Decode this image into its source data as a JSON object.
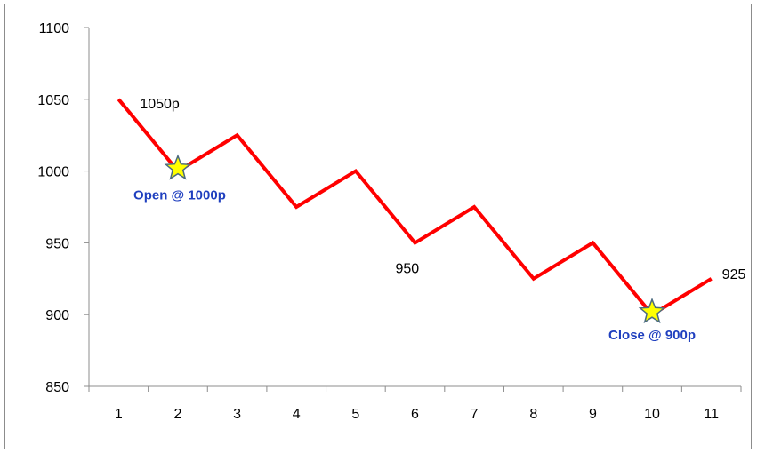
{
  "chart_data": {
    "type": "line",
    "x": [
      1,
      2,
      3,
      4,
      5,
      6,
      7,
      8,
      9,
      10,
      11
    ],
    "y": [
      1050,
      1000,
      1025,
      975,
      1000,
      950,
      975,
      925,
      950,
      900,
      925
    ],
    "ylim": [
      850,
      1100
    ],
    "y_ticks": [
      850,
      900,
      950,
      1000,
      1050,
      1100
    ],
    "x_ticks": [
      1,
      2,
      3,
      4,
      5,
      6,
      7,
      8,
      9,
      10,
      11
    ],
    "line_color": "#ff0000",
    "grid": false,
    "legend": "none",
    "data_labels": [
      {
        "x": 1,
        "y": 1050,
        "text": "1050p"
      },
      {
        "x": 6,
        "y": 950,
        "text": "950"
      },
      {
        "x": 11,
        "y": 925,
        "text": "925"
      }
    ],
    "markers": [
      {
        "x": 2,
        "y": 1000,
        "shape": "star",
        "fill": "#ffff00",
        "stroke": "#4a6a7f",
        "label": "Open @ 1000p",
        "label_color": "#1f3fbf"
      },
      {
        "x": 10,
        "y": 900,
        "shape": "star",
        "fill": "#ffff00",
        "stroke": "#4a6a7f",
        "label": "Close @ 900p",
        "label_color": "#1f3fbf"
      }
    ]
  }
}
